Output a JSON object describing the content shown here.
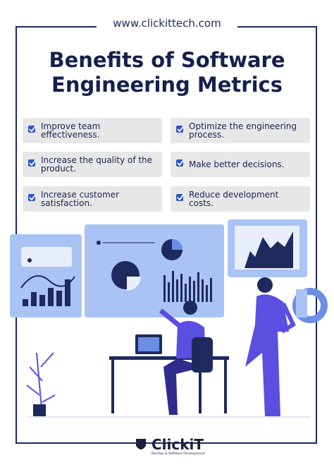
{
  "header": {
    "url": "www.clickittech.com",
    "title_lines": [
      "Benefits of Software",
      "Engineering Metrics"
    ]
  },
  "benefits": [
    "Improve team effectiveness.",
    "Optimize the engineering process.",
    "Increase the quality of the product.",
    "Make better decisions.",
    "Increase customer satisfaction.",
    "Reduce development costs."
  ],
  "footer": {
    "brand": "ClickiT",
    "tagline": "DevOps & Software Development"
  }
}
